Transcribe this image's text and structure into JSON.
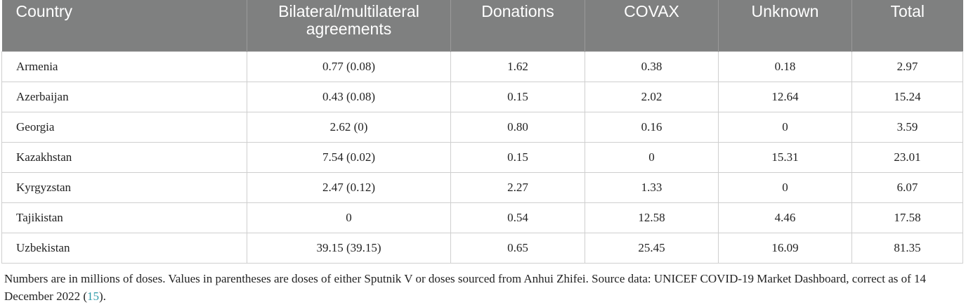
{
  "table": {
    "columns": [
      "Country",
      "Bilateral/multilateral agreements",
      "Donations",
      "COVAX",
      "Unknown",
      "Total"
    ],
    "rows": [
      [
        "Armenia",
        "0.77 (0.08)",
        "1.62",
        "0.38",
        "0.18",
        "2.97"
      ],
      [
        "Azerbaijan",
        "0.43 (0.08)",
        "0.15",
        "2.02",
        "12.64",
        "15.24"
      ],
      [
        "Georgia",
        "2.62 (0)",
        "0.80",
        "0.16",
        "0",
        "3.59"
      ],
      [
        "Kazakhstan",
        "7.54 (0.02)",
        "0.15",
        "0",
        "15.31",
        "23.01"
      ],
      [
        "Kyrgyzstan",
        "2.47 (0.12)",
        "2.27",
        "1.33",
        "0",
        "6.07"
      ],
      [
        "Tajikistan",
        "0",
        "0.54",
        "12.58",
        "4.46",
        "17.58"
      ],
      [
        "Uzbekistan",
        "39.15 (39.15)",
        "0.65",
        "25.45",
        "16.09",
        "81.35"
      ]
    ]
  },
  "footnote": {
    "text": "Numbers are in millions of doses. Values in parentheses are doses of either Sputnik V or doses sourced from Anhui Zhifei. Source data: UNICEF COVID-19 Market Dashboard, correct as of 14 December 2022 (",
    "ref": "15",
    "tail": ")."
  },
  "colors": {
    "header_bg": "#7f8080",
    "header_text": "#ffffff",
    "ref_link": "#2d9aa8"
  }
}
